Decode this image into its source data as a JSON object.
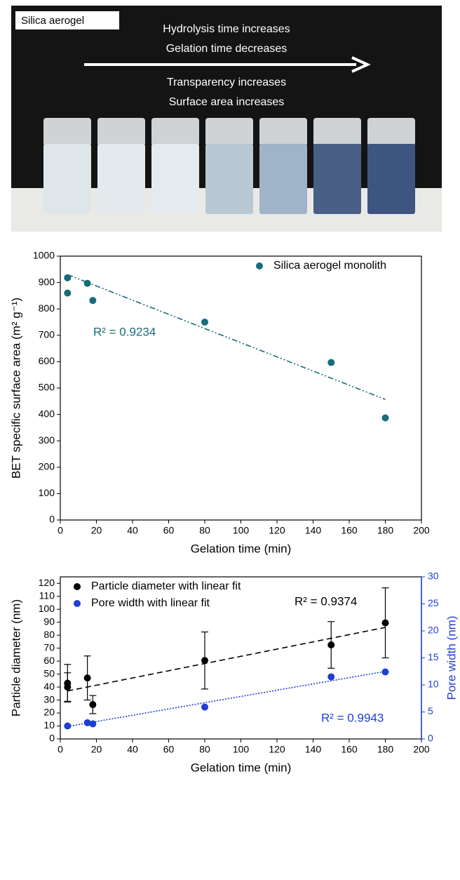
{
  "photo": {
    "label": "Silica aerogel",
    "lines": [
      "Hydrolysis time increases",
      "Gelation time decreases",
      "Transparency increases",
      "Surface area increases"
    ]
  },
  "chart_data": [
    {
      "type": "scatter",
      "x_label": "Gelation time (min)",
      "y_label": "BET specific surface area (m² g⁻¹)",
      "xlim": [
        0,
        200
      ],
      "xticks": [
        0,
        20,
        40,
        60,
        80,
        100,
        120,
        140,
        160,
        180,
        200
      ],
      "ylim": [
        0,
        1000
      ],
      "yticks": [
        0,
        100,
        200,
        300,
        400,
        500,
        600,
        700,
        800,
        900,
        1000
      ],
      "legend": "upper right",
      "series": [
        {
          "name": "Silica aerogel monolith",
          "color": "#176d7a",
          "x": [
            4,
            4,
            15,
            18,
            80,
            150,
            180
          ],
          "values": [
            918,
            860,
            897,
            832,
            750,
            597,
            387
          ],
          "fit": {
            "x": [
              4,
              180
            ],
            "y": [
              930,
              457
            ],
            "line_style": "dashdot"
          },
          "fit_label": "R² = 0.9234"
        }
      ]
    },
    {
      "type": "scatter",
      "x_label": "Gelation time (min)",
      "y_label": "Particle diameter (nm)",
      "y2_label": "Pore width (nm)",
      "xlim": [
        0,
        200
      ],
      "xticks": [
        0,
        20,
        40,
        60,
        80,
        100,
        120,
        140,
        160,
        180,
        200
      ],
      "ylim": [
        0,
        125
      ],
      "yticks": [
        0,
        10,
        20,
        30,
        40,
        50,
        60,
        70,
        80,
        90,
        100,
        110,
        120
      ],
      "y2lim": [
        0,
        30
      ],
      "y2ticks": [
        0,
        5,
        10,
        15,
        20,
        25,
        30
      ],
      "legend": "upper left",
      "series": [
        {
          "name": "Particle diameter with linear fit",
          "color": "#000000",
          "x": [
            4,
            4,
            15,
            18,
            80,
            150,
            180
          ],
          "values": [
            40,
            43,
            47,
            26.5,
            60.5,
            72.5,
            89.5
          ],
          "errors": [
            11,
            14.5,
            17,
            7,
            22,
            18,
            27
          ],
          "fit": {
            "x": [
              4,
              180
            ],
            "y": [
              37,
              86
            ],
            "line_style": "dashed"
          },
          "fit_label": "R² = 0.9374"
        },
        {
          "name": "Pore width with linear fit",
          "color": "#1f3fd1",
          "axis": "y2",
          "x": [
            4,
            15,
            18,
            80,
            150,
            180
          ],
          "values": [
            2.4,
            3.0,
            2.8,
            5.9,
            11.5,
            12.4
          ],
          "fit": {
            "x": [
              4,
              180
            ],
            "y": [
              2.3,
              12.5
            ],
            "line_style": "dotted"
          },
          "fit_label": "R² = 0.9943"
        }
      ]
    }
  ]
}
